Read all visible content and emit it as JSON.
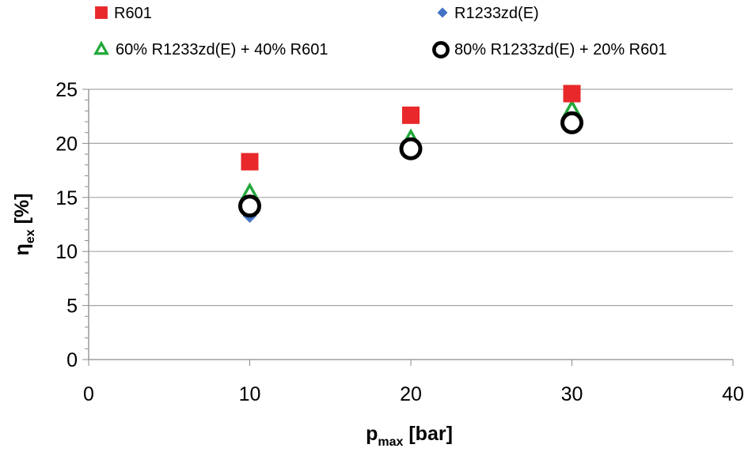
{
  "chart_data": {
    "type": "scatter",
    "title": "",
    "xlabel": {
      "main": "p",
      "sub": "max",
      "unit": " [bar]"
    },
    "ylabel": {
      "main": "η",
      "sub": "ex",
      "unit": " [%]"
    },
    "xlim": [
      0,
      40
    ],
    "ylim": [
      0,
      25
    ],
    "x_ticks": [
      0,
      10,
      20,
      30,
      40
    ],
    "y_ticks": [
      0,
      5,
      10,
      15,
      20,
      25
    ],
    "grid": "horizontal",
    "legend_position": "top",
    "series": [
      {
        "name": "R601",
        "marker": "square",
        "color": "#e8282a",
        "x": [
          10,
          20,
          30
        ],
        "y": [
          18.3,
          22.6,
          24.6
        ]
      },
      {
        "name": "R1233zd(E)",
        "marker": "diamond",
        "color": "#4472c4",
        "x": [
          10,
          20,
          30
        ],
        "y": [
          13.3,
          19.1,
          21.6
        ]
      },
      {
        "name": "60% R1233zd(E) + 40% R601",
        "marker": "triangle",
        "color": "#22a83a",
        "x": [
          10,
          20,
          30
        ],
        "y": [
          15.4,
          20.4,
          23.1
        ]
      },
      {
        "name": "80% R1233zd(E) + 20% R601",
        "marker": "circle",
        "color": "#000000",
        "x": [
          10,
          20,
          30
        ],
        "y": [
          14.2,
          19.5,
          21.9
        ]
      }
    ]
  }
}
